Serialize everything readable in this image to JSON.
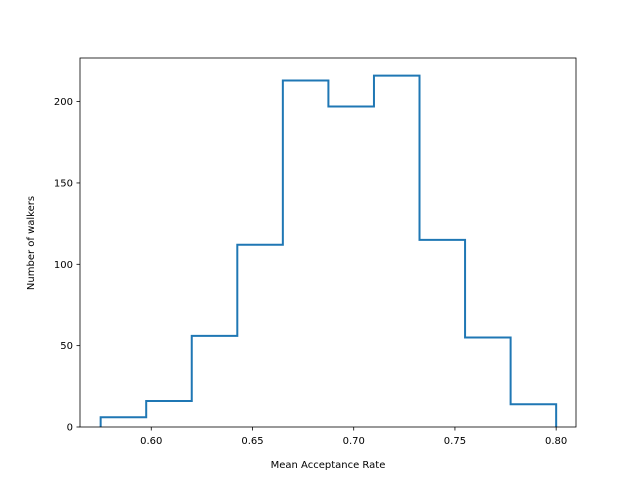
{
  "chart_data": {
    "type": "histogram",
    "title": "",
    "xlabel": "Mean Acceptance Rate",
    "ylabel": "Number of walkers",
    "xlim": [
      0.5648,
      0.8098
    ],
    "ylim": [
      0,
      226.8
    ],
    "bin_edges": [
      0.575,
      0.5975,
      0.62,
      0.6425,
      0.665,
      0.6875,
      0.71,
      0.7325,
      0.755,
      0.7775,
      0.8
    ],
    "counts": [
      6,
      16,
      56,
      112,
      213,
      197,
      216,
      115,
      55,
      14
    ],
    "x_ticks": [
      {
        "value": 0.6,
        "label": "0.60"
      },
      {
        "value": 0.65,
        "label": "0.65"
      },
      {
        "value": 0.7,
        "label": "0.70"
      },
      {
        "value": 0.75,
        "label": "0.75"
      },
      {
        "value": 0.8,
        "label": "0.80"
      }
    ],
    "y_ticks": [
      {
        "value": 0,
        "label": "0"
      },
      {
        "value": 50,
        "label": "50"
      },
      {
        "value": 100,
        "label": "100"
      },
      {
        "value": 150,
        "label": "150"
      },
      {
        "value": 200,
        "label": "200"
      }
    ],
    "histtype": "step",
    "line_color": "#1f77b4",
    "grid": false,
    "legend": false
  }
}
